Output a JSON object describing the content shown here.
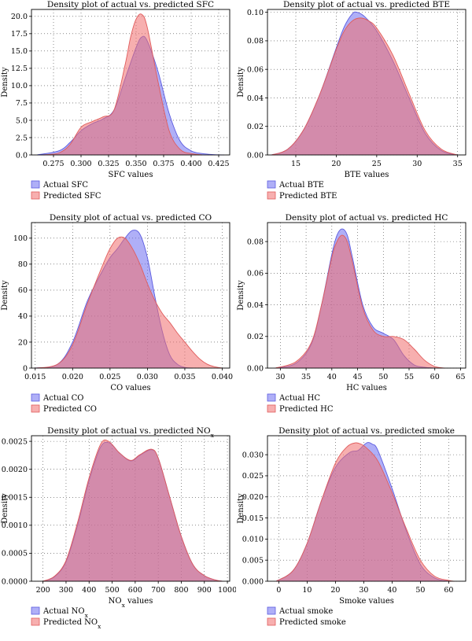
{
  "legend_colors": {
    "actual": "#7777ee",
    "predicted": "#ee6666"
  },
  "chart_data": [
    {
      "type": "area",
      "title": "Density plot of actual vs. predicted SFC",
      "xlabel": "SFC values",
      "ylabel": "Density",
      "xlim": [
        0.255,
        0.435
      ],
      "ylim": [
        0,
        21
      ],
      "xticks": [
        0.275,
        0.3,
        0.325,
        0.35,
        0.375,
        0.4,
        0.425
      ],
      "xtick_labels": [
        "0.275",
        "0.300",
        "0.325",
        "0.350",
        "0.375",
        "0.400",
        "0.425"
      ],
      "yticks": [
        0,
        2.5,
        5,
        7.5,
        10,
        12.5,
        15,
        17.5,
        20
      ],
      "ytick_labels": [
        "0.0",
        "2.5",
        "5.0",
        "7.5",
        "10.0",
        "12.5",
        "15.0",
        "17.5",
        "20.0"
      ],
      "series": [
        {
          "name": "Actual SFC",
          "role": "actual",
          "x": [
            0.26,
            0.28,
            0.29,
            0.3,
            0.31,
            0.32,
            0.33,
            0.34,
            0.35,
            0.355,
            0.36,
            0.37,
            0.38,
            0.39,
            0.4,
            0.41,
            0.42,
            0.43
          ],
          "y": [
            0,
            0.6,
            1.8,
            3.5,
            4.5,
            5.2,
            6.5,
            11,
            15.5,
            17,
            16.5,
            12,
            6,
            2,
            0.6,
            0.2,
            0.05,
            0
          ]
        },
        {
          "name": "Predicted SFC",
          "role": "predicted",
          "x": [
            0.265,
            0.28,
            0.29,
            0.3,
            0.31,
            0.32,
            0.33,
            0.34,
            0.345,
            0.35,
            0.355,
            0.36,
            0.37,
            0.38,
            0.39,
            0.4,
            0.41
          ],
          "y": [
            0,
            0.3,
            1.5,
            4,
            4.8,
            5.5,
            6.5,
            13,
            17,
            19.6,
            20.3,
            18.5,
            10.5,
            3.5,
            0.8,
            0.2,
            0
          ]
        }
      ]
    },
    {
      "type": "area",
      "title": "Density plot of actual vs. predicted BTE",
      "xlabel": "BTE values",
      "ylabel": "Density",
      "xlim": [
        11.5,
        36
      ],
      "ylim": [
        0,
        0.102
      ],
      "xticks": [
        15,
        20,
        25,
        30,
        35
      ],
      "xtick_labels": [
        "15",
        "20",
        "25",
        "30",
        "35"
      ],
      "yticks": [
        0,
        0.02,
        0.04,
        0.06,
        0.08,
        0.1
      ],
      "ytick_labels": [
        "0.00",
        "0.02",
        "0.04",
        "0.06",
        "0.08",
        "0.10"
      ],
      "series": [
        {
          "name": "Actual BTE",
          "role": "actual",
          "x": [
            12,
            14,
            16,
            18,
            20,
            21,
            22,
            22.6,
            23.5,
            25,
            27,
            29,
            31,
            33,
            35
          ],
          "y": [
            0,
            0.004,
            0.018,
            0.043,
            0.075,
            0.09,
            0.099,
            0.1,
            0.097,
            0.087,
            0.066,
            0.04,
            0.015,
            0.003,
            0
          ]
        },
        {
          "name": "Predicted BTE",
          "role": "predicted",
          "x": [
            12,
            14,
            16,
            18,
            20,
            21,
            22,
            23,
            24,
            25,
            27,
            29,
            31,
            33,
            35
          ],
          "y": [
            0,
            0.004,
            0.018,
            0.043,
            0.074,
            0.087,
            0.094,
            0.096,
            0.094,
            0.089,
            0.07,
            0.043,
            0.017,
            0.004,
            0
          ]
        }
      ]
    },
    {
      "type": "area",
      "title": "Density plot of actual vs. predicted CO",
      "xlabel": "CO values",
      "ylabel": "Density",
      "xlim": [
        0.0145,
        0.041
      ],
      "ylim": [
        0,
        112
      ],
      "xticks": [
        0.015,
        0.02,
        0.025,
        0.03,
        0.035,
        0.04
      ],
      "xtick_labels": [
        "0.015",
        "0.020",
        "0.025",
        "0.030",
        "0.035",
        "0.040"
      ],
      "yticks": [
        0,
        20,
        40,
        60,
        80,
        100
      ],
      "ytick_labels": [
        "0",
        "20",
        "40",
        "60",
        "80",
        "100"
      ],
      "series": [
        {
          "name": "Actual CO",
          "role": "actual",
          "x": [
            0.015,
            0.018,
            0.02,
            0.022,
            0.024,
            0.025,
            0.026,
            0.027,
            0.028,
            0.029,
            0.03,
            0.031,
            0.032,
            0.033,
            0.034,
            0.035,
            0.036
          ],
          "y": [
            0,
            3,
            20,
            52,
            75,
            85,
            92,
            100,
            106,
            103,
            85,
            55,
            28,
            10,
            3,
            0.5,
            0
          ]
        },
        {
          "name": "Predicted CO",
          "role": "predicted",
          "x": [
            0.015,
            0.018,
            0.02,
            0.022,
            0.024,
            0.025,
            0.026,
            0.027,
            0.028,
            0.029,
            0.03,
            0.031,
            0.032,
            0.033,
            0.034,
            0.035,
            0.036,
            0.037,
            0.038,
            0.039,
            0.04
          ],
          "y": [
            0,
            3,
            18,
            50,
            79,
            92,
            100,
            100,
            92,
            80,
            65,
            52,
            42,
            35,
            27,
            20,
            13,
            7,
            3,
            1,
            0
          ]
        }
      ]
    },
    {
      "type": "area",
      "title": "Density plot of actual vs. predicted HC",
      "xlabel": "HC values",
      "ylabel": "Density",
      "xlim": [
        27.5,
        66
      ],
      "ylim": [
        0,
        0.092
      ],
      "xticks": [
        30,
        35,
        40,
        45,
        50,
        55,
        60,
        65
      ],
      "xtick_labels": [
        "30",
        "35",
        "40",
        "45",
        "50",
        "55",
        "60",
        "65"
      ],
      "yticks": [
        0,
        0.02,
        0.04,
        0.06,
        0.08
      ],
      "ytick_labels": [
        "0.00",
        "0.02",
        "0.04",
        "0.06",
        "0.08"
      ],
      "series": [
        {
          "name": "Actual HC",
          "role": "actual",
          "x": [
            29,
            33,
            36,
            38,
            40,
            41,
            42,
            43,
            44,
            46,
            48,
            50,
            52,
            54,
            56,
            58,
            60
          ],
          "y": [
            0,
            0.003,
            0.015,
            0.04,
            0.072,
            0.084,
            0.088,
            0.084,
            0.07,
            0.04,
            0.026,
            0.022,
            0.018,
            0.008,
            0.002,
            0.0005,
            0
          ]
        },
        {
          "name": "Predicted HC",
          "role": "predicted",
          "x": [
            29,
            33,
            36,
            38,
            40,
            41,
            42,
            43,
            44,
            46,
            48,
            50,
            52,
            54,
            56,
            58,
            60,
            62
          ],
          "y": [
            0,
            0.004,
            0.016,
            0.04,
            0.07,
            0.08,
            0.084,
            0.08,
            0.067,
            0.038,
            0.024,
            0.02,
            0.02,
            0.018,
            0.012,
            0.005,
            0.001,
            0
          ]
        }
      ]
    },
    {
      "type": "area",
      "title": "Density plot of actual vs. predicted NO",
      "title_sub": "x",
      "xlabel": "NO",
      "xlabel_sub": "x",
      "xlabel_tail": " values",
      "ylabel": "Density",
      "xlim": [
        150,
        1010
      ],
      "ylim": [
        0,
        0.0026
      ],
      "xticks": [
        200,
        300,
        400,
        500,
        600,
        700,
        800,
        900,
        1000
      ],
      "xtick_labels": [
        "200",
        "300",
        "400",
        "500",
        "600",
        "700",
        "800",
        "900",
        "1000"
      ],
      "yticks": [
        0,
        0.0005,
        0.001,
        0.0015,
        0.002,
        0.0025
      ],
      "ytick_labels": [
        "0.0000",
        "0.0005",
        "0.0010",
        "0.0015",
        "0.0020",
        "0.0025"
      ],
      "series": [
        {
          "name": "Actual NO",
          "name_sub": "x",
          "role": "actual",
          "x": [
            200,
            250,
            300,
            350,
            400,
            450,
            490,
            530,
            580,
            620,
            670,
            700,
            750,
            800,
            850,
            900,
            950,
            980
          ],
          "y": [
            0,
            8e-05,
            0.00035,
            0.001,
            0.0018,
            0.0024,
            0.00247,
            0.0023,
            0.00215,
            0.00225,
            0.00235,
            0.0022,
            0.0015,
            0.0008,
            0.0003,
            0.0001,
            2e-05,
            0
          ]
        },
        {
          "name": "Predicted NO",
          "name_sub": "x",
          "role": "predicted",
          "x": [
            200,
            250,
            300,
            350,
            400,
            450,
            485,
            530,
            580,
            620,
            670,
            700,
            750,
            800,
            850,
            900,
            950,
            980
          ],
          "y": [
            0,
            9e-05,
            0.00037,
            0.00105,
            0.00185,
            0.00245,
            0.0025,
            0.0023,
            0.00216,
            0.00226,
            0.00236,
            0.0022,
            0.0015,
            0.0008,
            0.0003,
            0.0001,
            2e-05,
            0
          ]
        }
      ]
    },
    {
      "type": "area",
      "title": "Density plot of actual vs. predicted smoke",
      "xlabel": "Smoke values",
      "ylabel": "Density",
      "xlim": [
        -4,
        66
      ],
      "ylim": [
        0,
        0.0345
      ],
      "xticks": [
        0,
        10,
        20,
        30,
        40,
        50,
        60
      ],
      "xtick_labels": [
        "0",
        "10",
        "20",
        "30",
        "40",
        "50",
        "60"
      ],
      "yticks": [
        0,
        0.005,
        0.01,
        0.015,
        0.02,
        0.025,
        0.03
      ],
      "ytick_labels": [
        "0.000",
        "0.005",
        "0.010",
        "0.015",
        "0.020",
        "0.025",
        "0.030"
      ],
      "series": [
        {
          "name": "Actual smoke",
          "role": "actual",
          "x": [
            -1,
            5,
            10,
            15,
            20,
            25,
            28,
            31,
            33,
            35,
            40,
            45,
            50,
            55,
            60
          ],
          "y": [
            0,
            0.0025,
            0.009,
            0.019,
            0.027,
            0.0305,
            0.031,
            0.0328,
            0.0325,
            0.031,
            0.022,
            0.012,
            0.004,
            0.0008,
            0
          ]
        },
        {
          "name": "Predicted smoke",
          "role": "predicted",
          "x": [
            -1,
            5,
            10,
            15,
            20,
            24,
            27,
            29,
            31,
            35,
            40,
            45,
            50,
            55,
            60,
            62
          ],
          "y": [
            0,
            0.0025,
            0.009,
            0.019,
            0.028,
            0.0318,
            0.0328,
            0.0325,
            0.0316,
            0.0285,
            0.021,
            0.0125,
            0.005,
            0.0012,
            0.0002,
            0
          ]
        }
      ]
    }
  ]
}
